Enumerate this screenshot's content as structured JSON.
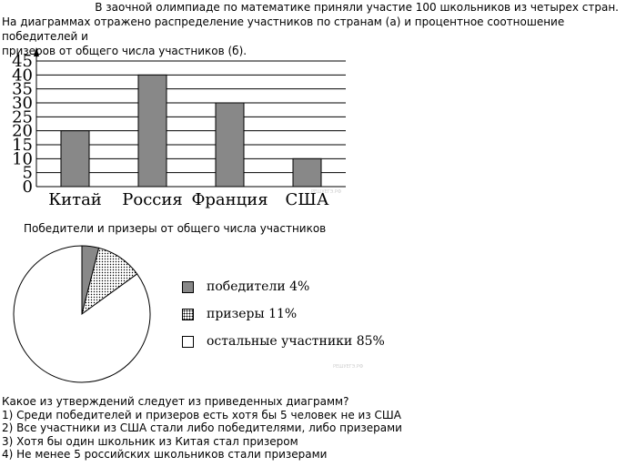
{
  "intro": {
    "line1": "В заочной олимпиаде по математике приняли участие 100 школьников из четырех стран.",
    "line2": "На диаграммах отражено распределение участников по странам (а) и процентное соотношение победителей и",
    "line3": "призеров от общего числа участников (б)."
  },
  "chart_data": [
    {
      "type": "bar",
      "categories": [
        "Китай",
        "Россия",
        "Франция",
        "США"
      ],
      "values": [
        20,
        40,
        30,
        10
      ],
      "ylim": [
        0,
        45
      ],
      "yticks": [
        0,
        5,
        10,
        15,
        20,
        25,
        30,
        35,
        40,
        45
      ],
      "grid": true,
      "bar_color": "#888888"
    },
    {
      "type": "pie",
      "title": "Победители и призеры от общего числа участников",
      "labels": [
        "победители",
        "призеры",
        "остальные участники"
      ],
      "legend_labels": [
        "победители 4%",
        "призеры  11%",
        "остальные участники  85%"
      ],
      "values": [
        4,
        11,
        85
      ],
      "fills": [
        "gray",
        "dotted",
        "white"
      ]
    }
  ],
  "watermarks": [
    "РЕШУЕГЭ.РФ",
    "РЕШУЕГЭ.РФ"
  ],
  "question": {
    "prompt": "Какое из утверждений следует из приведенных диаграмм?",
    "options": [
      "1) Среди победителей и призеров есть хотя бы 5 человек не из США",
      "2) Все участники из США стали либо победителями, либо призерами",
      "3) Хотя бы один школьник из Китая стал призером",
      "4) Не менее 5 российских школьников стали призерами"
    ]
  }
}
